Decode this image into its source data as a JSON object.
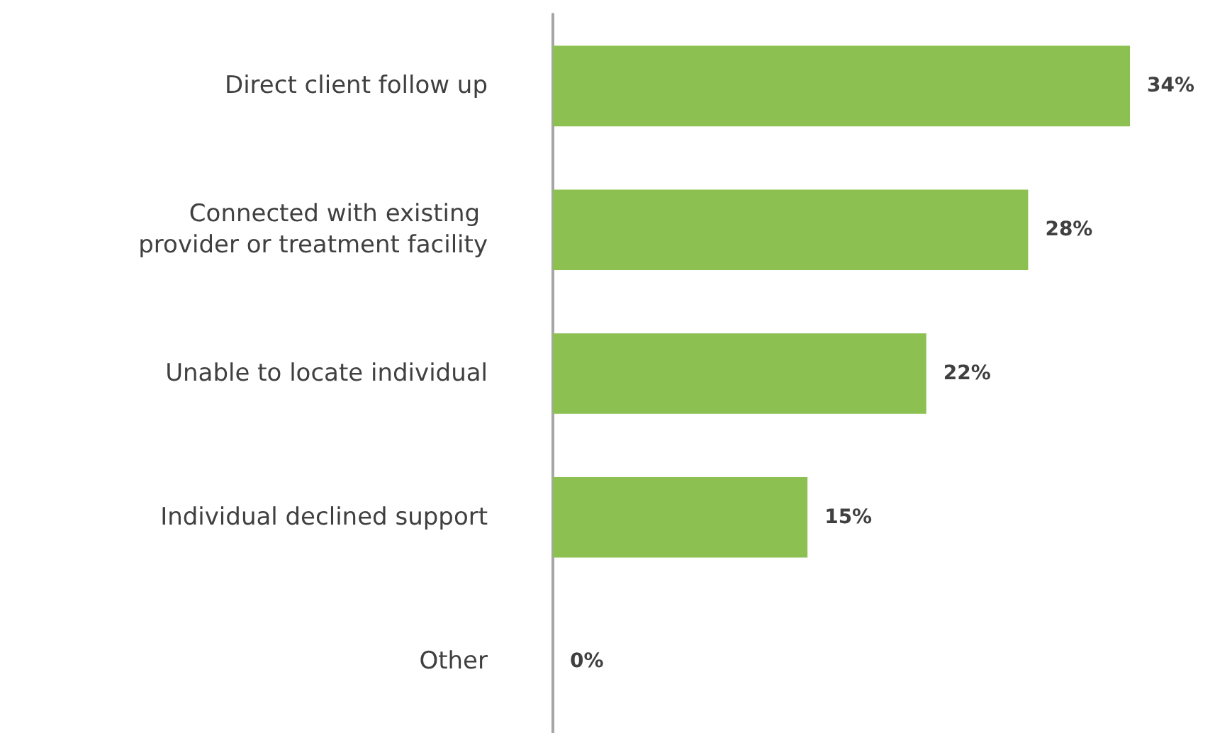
{
  "chart_data": {
    "type": "bar",
    "orientation": "horizontal",
    "categories": [
      "Direct client follow up",
      "Connected with existing provider or treatment facility",
      "Unable to locate individual",
      "Individual declined support",
      "Other"
    ],
    "values": [
      34,
      28,
      22,
      15,
      0
    ],
    "value_labels": [
      "34%",
      "28%",
      "22%",
      "15%",
      "0%"
    ],
    "color": "#8cc152",
    "grid": false,
    "tick_labels": "y"
  }
}
